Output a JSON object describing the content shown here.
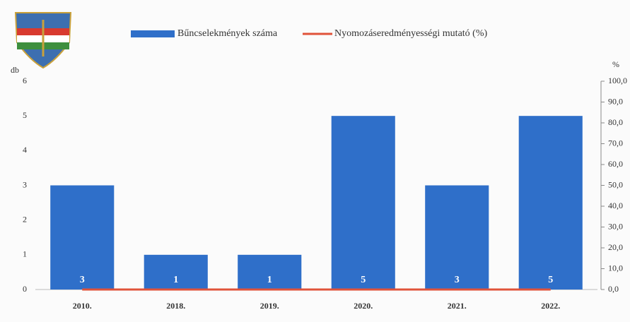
{
  "chart_data": {
    "type": "bar",
    "categories": [
      "2010.",
      "2018.",
      "2019.",
      "2020.",
      "2021.",
      "2022."
    ],
    "series": [
      {
        "name": "Bűncselekmények száma",
        "color": "#2f6fc9",
        "type": "bar",
        "values": [
          3,
          1,
          1,
          5,
          3,
          5
        ]
      },
      {
        "name": "Nyomozáseredményességi mutató (%)",
        "color": "#e0533a",
        "type": "line",
        "axis": "y2",
        "values": [
          0,
          0,
          0,
          0,
          0,
          0
        ]
      }
    ],
    "ylabel": "db",
    "y2label": "%",
    "ylim": [
      0,
      6
    ],
    "yticks": [
      0,
      1,
      2,
      3,
      4,
      5,
      6
    ],
    "y2lim": [
      0,
      100
    ],
    "y2ticks": [
      {
        "value": 0,
        "label": "0,0"
      },
      {
        "value": 10,
        "label": "10,0"
      },
      {
        "value": 20,
        "label": "20,0"
      },
      {
        "value": 30,
        "label": "30,0"
      },
      {
        "value": 40,
        "label": "40,0"
      },
      {
        "value": 50,
        "label": "50,0"
      },
      {
        "value": 60,
        "label": "60,0"
      },
      {
        "value": 70,
        "label": "70,0"
      },
      {
        "value": 80,
        "label": "80,0"
      },
      {
        "value": 90,
        "label": "90,0"
      },
      {
        "value": 100,
        "label": "100,0"
      }
    ],
    "data_labels": true
  }
}
